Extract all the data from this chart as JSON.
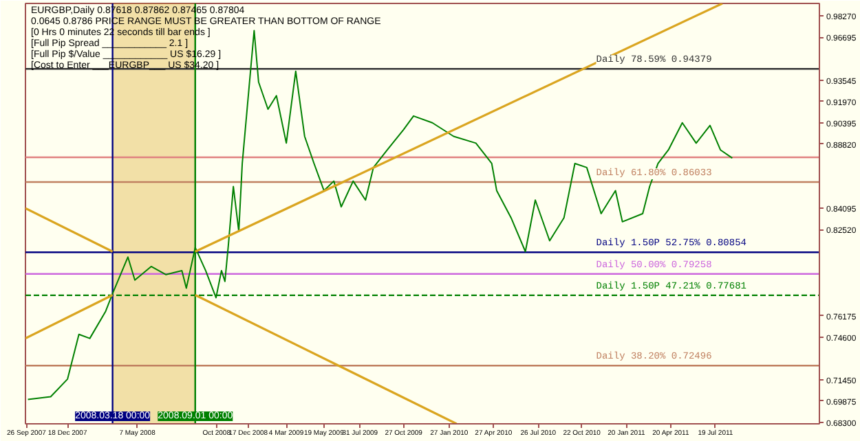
{
  "chart_data": {
    "type": "line",
    "title": "EURGBP,Daily  0.87618 0.87862 0.87465 0.87804",
    "annotations": [
      "0.0645  0.8786  PRICE RANGE MUST BE GREATER THAN BOTTOM OF RANGE",
      "[0 Hrs 0 minutes 22 seconds till bar ends ]",
      "[Full Pip Spread ____________ 2.1 ]",
      "[Full Pip $/Value ____________ US $16.29 ]",
      "[Cost to Enter ___EURGBP___ US $34.20 ]"
    ],
    "x": [
      "2007-09-29",
      "2007-11-14",
      "2007-12-18",
      "2008-01-10",
      "2008-02-01",
      "2008-03-04",
      "2008-03-18",
      "2008-04-18",
      "2008-05-02",
      "2008-06-04",
      "2008-07-04",
      "2008-08-05",
      "2008-08-14",
      "2008-09-01",
      "2008-09-22",
      "2008-10-13",
      "2008-10-24",
      "2008-10-31",
      "2008-11-07",
      "2008-11-17",
      "2008-11-28",
      "2008-12-05",
      "2008-12-29",
      "2009-01-07",
      "2009-01-26",
      "2009-02-12",
      "2009-03-04",
      "2009-03-23",
      "2009-04-10",
      "2009-04-29",
      "2009-05-19",
      "2009-06-08",
      "2009-06-23",
      "2009-07-17",
      "2009-08-11",
      "2009-08-27",
      "2009-09-24",
      "2009-10-27",
      "2009-11-16",
      "2009-12-24",
      "2010-02-05",
      "2010-03-22",
      "2010-04-23",
      "2010-05-03",
      "2010-06-01",
      "2010-06-30",
      "2010-07-20",
      "2010-08-18",
      "2010-09-16",
      "2010-10-08",
      "2010-11-01",
      "2010-11-30",
      "2010-12-29",
      "2011-01-12",
      "2011-02-22",
      "2011-03-08",
      "2011-03-25",
      "2011-04-15",
      "2011-05-13",
      "2011-06-10",
      "2011-07-08",
      "2011-07-29",
      "2011-08-22"
    ],
    "series": [
      {
        "color": "#008000",
        "values": [
          0.7,
          0.702,
          0.715,
          0.748,
          0.745,
          0.765,
          0.778,
          0.805,
          0.788,
          0.798,
          0.792,
          0.795,
          0.782,
          0.812,
          0.795,
          0.775,
          0.795,
          0.787,
          0.814,
          0.857,
          0.824,
          0.874,
          0.972,
          0.934,
          0.914,
          0.924,
          0.889,
          0.942,
          0.894,
          0.874,
          0.854,
          0.861,
          0.842,
          0.861,
          0.847,
          0.871,
          0.884,
          0.899,
          0.909,
          0.904,
          0.894,
          0.889,
          0.874,
          0.854,
          0.834,
          0.809,
          0.847,
          0.817,
          0.834,
          0.874,
          0.871,
          0.837,
          0.854,
          0.831,
          0.837,
          0.857,
          0.874,
          0.884,
          0.904,
          0.889,
          0.902,
          0.884,
          0.878
        ]
      },
      {
        "type": "line",
        "color": "#daa520",
        "x": [
          "2007-09-24",
          "2008-03-18"
        ],
        "values": [
          0.745,
          0.777
        ]
      },
      {
        "type": "line",
        "color": "#daa520",
        "x": [
          "2007-09-24",
          "2008-03-18"
        ],
        "values": [
          0.841,
          0.809
        ]
      },
      {
        "type": "line",
        "color": "#daa520",
        "x": [
          "2008-09-01",
          "2011-08-02"
        ],
        "values": [
          0.809,
          0.992
        ]
      },
      {
        "type": "line",
        "color": "#daa520",
        "x": [
          "2008-09-01",
          "2010-02-11"
        ],
        "values": [
          0.777,
          0.682
        ]
      }
    ],
    "xlim": [
      "2007-09-24",
      "2012-02-14"
    ],
    "xticks": [
      {
        "value": "2007-09-26",
        "label": "26 Sep 2007"
      },
      {
        "value": "2007-12-18",
        "label": "18 Dec 2007"
      },
      {
        "value": "2008-05-07",
        "label": "7 May 2008"
      },
      {
        "value": "2008-10-14",
        "label": "Oct 2008"
      },
      {
        "value": "2008-12-17",
        "label": "17 Dec 2008"
      },
      {
        "value": "2009-03-04",
        "label": "4 Mar 2009"
      },
      {
        "value": "2009-05-19",
        "label": "19 May 2009"
      },
      {
        "value": "2009-07-31",
        "label": "31 Jul 2009"
      },
      {
        "value": "2009-10-27",
        "label": "27 Oct 2009"
      },
      {
        "value": "2010-01-27",
        "label": "27 Jan 2010"
      },
      {
        "value": "2010-04-27",
        "label": "27 Apr 2010"
      },
      {
        "value": "2010-07-26",
        "label": "26 Jul 2010"
      },
      {
        "value": "2010-10-22",
        "label": "22 Oct 2010"
      },
      {
        "value": "2011-01-20",
        "label": "20 Jan 2011"
      },
      {
        "value": "2011-04-20",
        "label": "20 Apr 2011"
      },
      {
        "value": "2011-07-19",
        "label": "19 Jul 2011"
      }
    ],
    "ylim": [
      0.682,
      0.992
    ],
    "yticks": [
      {
        "value": 0.683,
        "label": "0.68300"
      },
      {
        "value": 0.69875,
        "label": "0.69875"
      },
      {
        "value": 0.7145,
        "label": "0.71450"
      },
      {
        "value": 0.746,
        "label": "0.74600"
      },
      {
        "value": 0.76175,
        "label": "0.76175"
      },
      {
        "value": 0.8252,
        "label": "0.82520"
      },
      {
        "value": 0.84095,
        "label": "0.84095"
      },
      {
        "value": 0.8882,
        "label": "0.88820"
      },
      {
        "value": 0.90395,
        "label": "0.90395"
      },
      {
        "value": 0.9197,
        "label": "0.91970"
      },
      {
        "value": 0.93545,
        "label": "0.93545"
      },
      {
        "value": 0.96695,
        "label": "0.96695"
      },
      {
        "value": 0.9827,
        "label": "0.98270"
      }
    ],
    "ref_lines": [
      {
        "axis": "y",
        "value": 0.94379,
        "label": "Daily  78.59%  0.94379",
        "color": "#333333"
      },
      {
        "axis": "y",
        "value": 0.87854,
        "label": null,
        "color": "#e08080"
      },
      {
        "axis": "y",
        "value": 0.86033,
        "label": "Daily  61.80%  0.86033",
        "color": "#c08060"
      },
      {
        "axis": "y",
        "value": 0.80854,
        "label": "Daily  1.50P 52.75%  0.80854",
        "color": "#000080"
      },
      {
        "axis": "y",
        "value": 0.79258,
        "label": "Daily  50.00%  0.79258",
        "color": "#cc66dd"
      },
      {
        "axis": "y",
        "value": 0.77681,
        "label": "Daily  1.50P 47.21%  0.77681",
        "color": "#008000",
        "line_style": "dashed"
      },
      {
        "axis": "y",
        "value": 0.72496,
        "label": "Daily  38.20%  0.72496",
        "color": "#c08060"
      },
      {
        "axis": "x",
        "value": "2008-03-18",
        "label": "2008.03.18 00:00",
        "color": "#000080"
      },
      {
        "axis": "x",
        "value": "2008-09-01",
        "label": "2008.09.01 00:00",
        "color": "#008000"
      }
    ],
    "bands": [
      {
        "axis": "x",
        "from": "2008-03-18",
        "to": "2008-09-01",
        "color": "#daa520"
      }
    ]
  }
}
